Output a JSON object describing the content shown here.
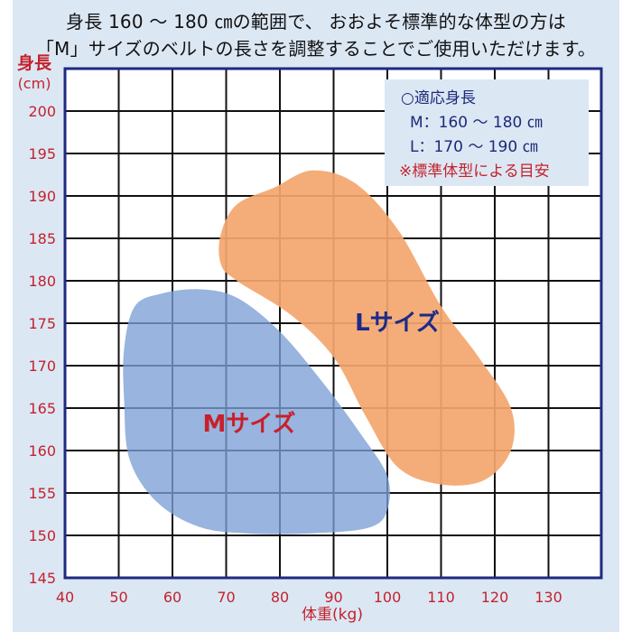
{
  "heading": {
    "line1": "身長 160 〜 180 ㎝の範囲で、 おおよそ標準的な体型の方は",
    "line2": "「M」サイズのベルトの長さを調整することでご使用いただけます。"
  },
  "legend": {
    "title": "○適応身長",
    "m_range": "M：160 〜 180 ㎝",
    "l_range": "L：170 〜 190 ㎝",
    "note": "※標準体型による目安"
  },
  "colors": {
    "axis_label": "#c3222c",
    "border": "#1f2a80",
    "m_region": "#7b9fd6",
    "l_region": "#f3a66e",
    "l_label": "#1c2a88",
    "m_label": "#c8202a",
    "background": "#dce7f4"
  },
  "chart_data": {
    "type": "area",
    "xlabel": "体重(kg)",
    "ylabel_line1": "身長",
    "ylabel_line2": "(cm)",
    "xlim": [
      40,
      140
    ],
    "ylim": [
      145,
      205
    ],
    "grid": true,
    "xticks": [
      "40",
      "50",
      "60",
      "70",
      "80",
      "90",
      "100",
      "110",
      "120",
      "130"
    ],
    "yticks": [
      "145",
      "150",
      "155",
      "160",
      "165",
      "170",
      "175",
      "180",
      "185",
      "190",
      "195",
      "200"
    ],
    "regions": [
      {
        "name": "Mサイズ",
        "label": "Mサイズ",
        "outline": [
          [
            53,
            177
          ],
          [
            58,
            178.5
          ],
          [
            65,
            179
          ],
          [
            72,
            178
          ],
          [
            80,
            174
          ],
          [
            88,
            168
          ],
          [
            95,
            162
          ],
          [
            100,
            157
          ],
          [
            100,
            153
          ],
          [
            97,
            151
          ],
          [
            88,
            150.3
          ],
          [
            75,
            150.2
          ],
          [
            65,
            151
          ],
          [
            57,
            154
          ],
          [
            52,
            159
          ],
          [
            51,
            166
          ],
          [
            51,
            172
          ]
        ]
      },
      {
        "name": "Lサイズ",
        "label": "Lサイズ",
        "outline": [
          [
            72,
            189
          ],
          [
            79,
            191
          ],
          [
            86,
            193
          ],
          [
            94,
            191.5
          ],
          [
            102,
            186
          ],
          [
            110,
            177
          ],
          [
            117,
            171
          ],
          [
            123,
            165
          ],
          [
            123,
            160
          ],
          [
            118,
            156.5
          ],
          [
            110,
            156
          ],
          [
            102,
            158
          ],
          [
            96,
            164
          ],
          [
            90,
            171
          ],
          [
            82,
            176
          ],
          [
            72,
            180
          ],
          [
            69,
            182
          ],
          [
            69,
            185.5
          ]
        ]
      }
    ]
  }
}
